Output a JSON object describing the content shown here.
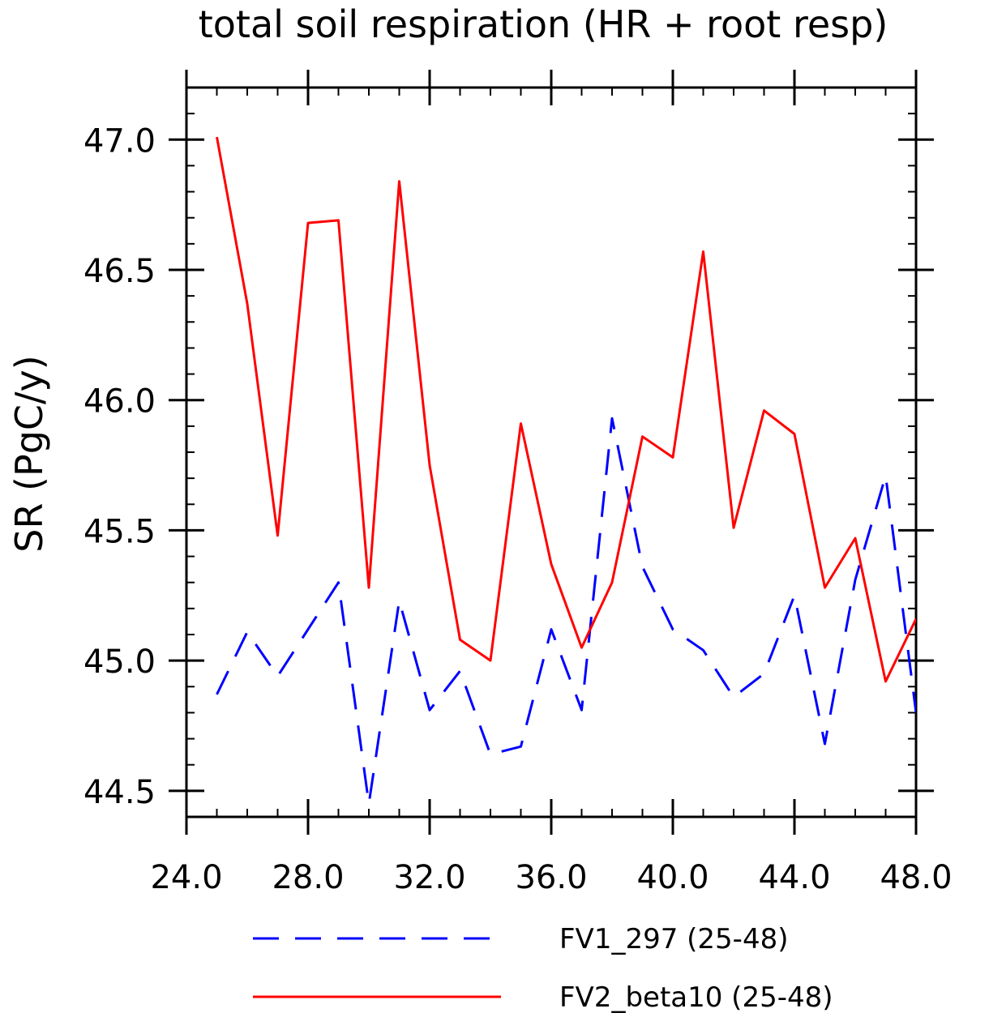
{
  "chart_data": {
    "type": "line",
    "title": "total soil respiration (HR + root resp)",
    "ylabel": "SR  (PgC/y)",
    "xlabel": "",
    "xlim": [
      24,
      48
    ],
    "ylim": [
      44.4,
      47.2
    ],
    "xticks": [
      24,
      28,
      32,
      36,
      40,
      44,
      48
    ],
    "xtick_labels": [
      "24.0",
      "28.0",
      "32.0",
      "36.0",
      "40.0",
      "44.0",
      "48.0"
    ],
    "yticks": [
      44.5,
      45.0,
      45.5,
      46.0,
      46.5,
      47.0
    ],
    "ytick_labels": [
      "44.5",
      "45.0",
      "45.5",
      "46.0",
      "46.5",
      "47.0"
    ],
    "grid": false,
    "legend_position": "bottom",
    "x": [
      25,
      26,
      27,
      28,
      29,
      30,
      31,
      32,
      33,
      34,
      35,
      36,
      37,
      38,
      39,
      40,
      41,
      42,
      43,
      44,
      45,
      46,
      47,
      48
    ],
    "series": [
      {
        "name": "FV1_297 (25-48)",
        "color": "#0000ff",
        "dash": "dashed",
        "values": [
          44.87,
          45.11,
          44.94,
          45.12,
          45.3,
          44.45,
          45.23,
          44.81,
          44.96,
          44.64,
          44.67,
          45.12,
          44.81,
          45.93,
          45.36,
          45.12,
          45.04,
          44.86,
          44.95,
          45.25,
          44.68,
          45.31,
          45.71,
          44.8
        ]
      },
      {
        "name": "FV2_beta10 (25-48)",
        "color": "#ff0000",
        "dash": "solid",
        "values": [
          47.01,
          46.37,
          45.48,
          46.68,
          46.69,
          45.28,
          46.84,
          45.75,
          45.08,
          45.0,
          45.91,
          45.37,
          45.05,
          45.3,
          45.86,
          45.78,
          46.57,
          45.51,
          45.96,
          45.87,
          45.28,
          45.47,
          44.92,
          45.16
        ]
      }
    ]
  }
}
